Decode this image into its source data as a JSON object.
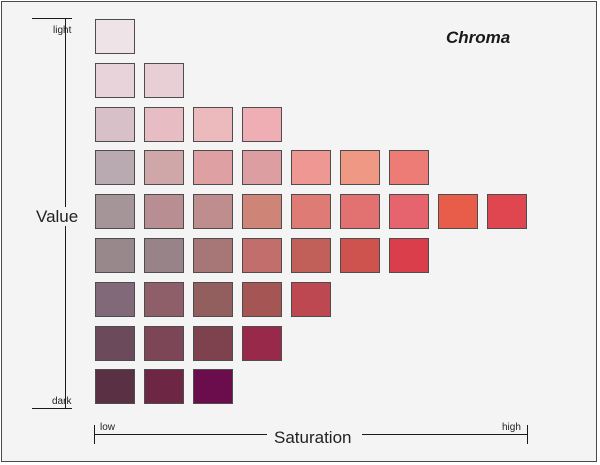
{
  "title": "Chroma",
  "value_axis": {
    "label": "Value",
    "top_label": "light",
    "bottom_label": "dark"
  },
  "saturation_axis": {
    "label": "Saturation",
    "left_label": "low",
    "right_label": "high"
  },
  "rows": [
    {
      "colors": [
        "#eee4e8"
      ]
    },
    {
      "colors": [
        "#e8d3da",
        "#e8cfd6"
      ]
    },
    {
      "colors": [
        "#d8c0c8",
        "#e7bcc3",
        "#ecb9bd",
        "#eeaeb4"
      ]
    },
    {
      "colors": [
        "#b8aab0",
        "#cfa7a9",
        "#dea0a3",
        "#dd9ea2",
        "#ef9893",
        "#ef9985",
        "#ec7c75"
      ]
    },
    {
      "colors": [
        "#a69598",
        "#b88e93",
        "#c08d8e",
        "#cf8478",
        "#dd7b74",
        "#e27271",
        "#e6646d",
        "#e85c4a",
        "#e04650"
      ]
    },
    {
      "colors": [
        "#98878b",
        "#978388",
        "#a67776",
        "#c26e6d",
        "#c06058",
        "#ce534f",
        "#d93e4a"
      ]
    },
    {
      "colors": [
        "#82697a",
        "#8e5f68",
        "#925e5e",
        "#a55654",
        "#bd4851"
      ]
    },
    {
      "colors": [
        "#6b4a5b",
        "#7c4656",
        "#7e414e",
        "#99294a"
      ]
    },
    {
      "colors": [
        "#5a3044",
        "#6d2745",
        "#6b0d4c"
      ]
    }
  ]
}
